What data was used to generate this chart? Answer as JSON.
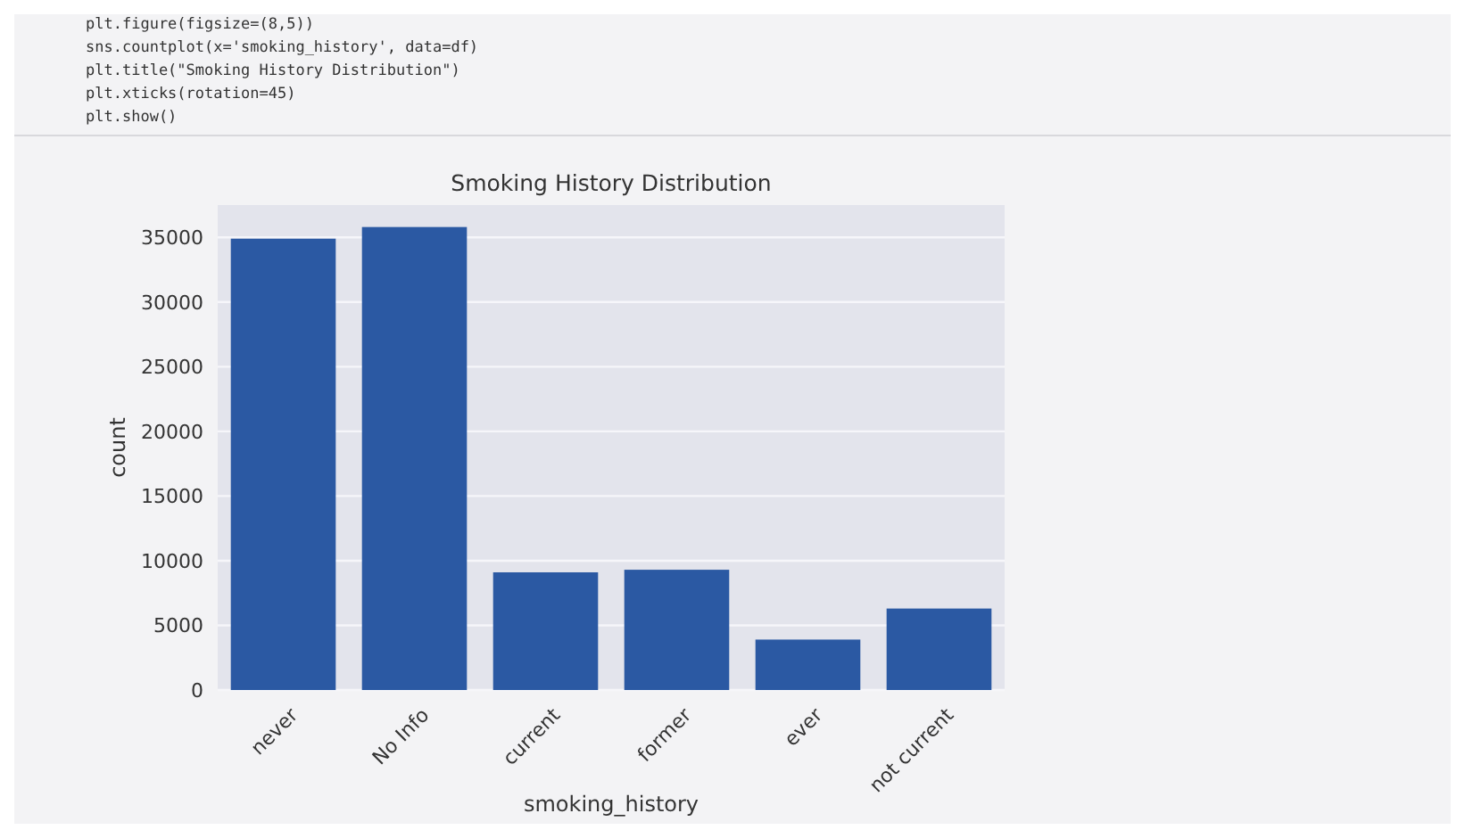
{
  "chart_data": {
    "type": "bar",
    "title": "Smoking History Distribution",
    "xlabel": "smoking_history",
    "ylabel": "count",
    "categories": [
      "never",
      "No Info",
      "current",
      "former",
      "ever",
      "not current"
    ],
    "values": [
      34900,
      35800,
      9100,
      9300,
      3900,
      6300
    ],
    "color": "#2b59a3",
    "ylim": [
      0,
      37500
    ],
    "yticks": [
      0,
      5000,
      10000,
      15000,
      20000,
      25000,
      30000,
      35000
    ],
    "grid": "y",
    "annotations": [
      "plt.figure(figsize=(8,5))",
      "sns.countplot(x='smoking_history', data=df)",
      "plt.title(\"Smoking History Distribution\")",
      "plt.xticks(rotation=45)",
      "plt.show()"
    ]
  }
}
